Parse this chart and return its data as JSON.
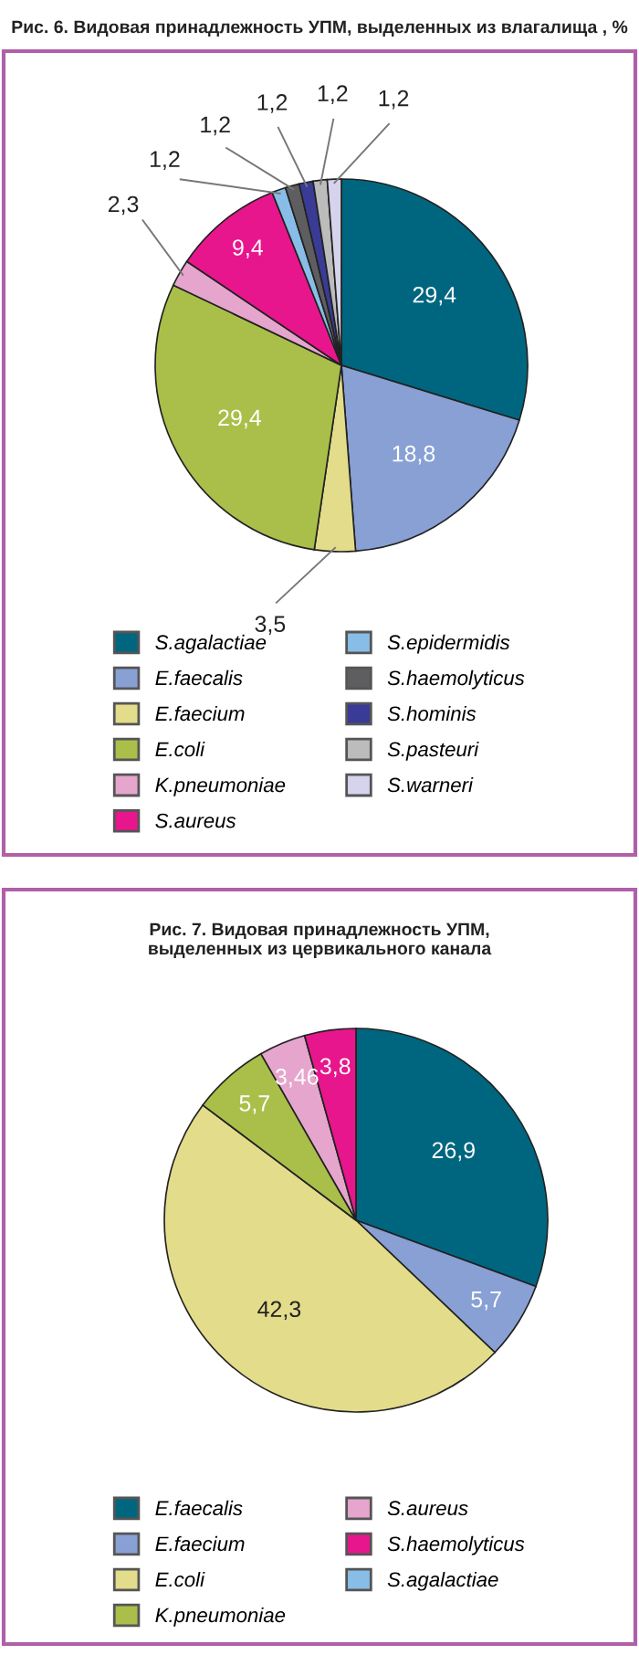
{
  "chart_data": [
    {
      "type": "pie",
      "title": "Рис. 6. Видовая принадлежность УПМ, выделенных из влагалища , %",
      "legend": "bottom",
      "categories": [
        "S.agalactiae",
        "E.faecalis",
        "E.faecium",
        "E.coli",
        "K.pneumoniae",
        "S.aureus",
        "S.epidermidis",
        "S.haemolyticus",
        "S.hominis",
        "S.pasteuri",
        "S.warneri"
      ],
      "values": [
        29.4,
        18.8,
        3.5,
        29.4,
        2.3,
        9.4,
        1.2,
        1.2,
        1.2,
        1.2,
        1.2
      ],
      "value_labels": [
        "29,4",
        "18,8",
        "3,5",
        "29,4",
        "2,3",
        "9,4",
        "1,2",
        "1,2",
        "1,2",
        "1,2",
        "1,2"
      ],
      "colors": [
        "#006680",
        "#88a0d4",
        "#e3dc8a",
        "#aabf4a",
        "#e6a5cc",
        "#e8168c",
        "#88bde8",
        "#5e5e60",
        "#3a3b96",
        "#bcbcbc",
        "#d6d3ec"
      ]
    },
    {
      "type": "pie",
      "title": "Рис. 7. Видовая принадлежность УПМ,\nвыделенных из цервикального канала",
      "legend": "bottom",
      "categories": [
        "E.faecalis",
        "E.faecium",
        "E.coli",
        "K.pneumoniae",
        "S.aureus",
        "S.haemolyticus",
        "S.agalactiae"
      ],
      "values": [
        26.9,
        5.7,
        42.3,
        5.7,
        3.46,
        3.8,
        null
      ],
      "value_labels": [
        "26,9",
        "5,7",
        "42,3",
        "5,7",
        "3,46",
        "3,8",
        null
      ],
      "colors": [
        "#006680",
        "#88a0d4",
        "#e3dc8a",
        "#aabf4a",
        "#e6a5cc",
        "#e8168c",
        "#88bde8"
      ]
    }
  ]
}
